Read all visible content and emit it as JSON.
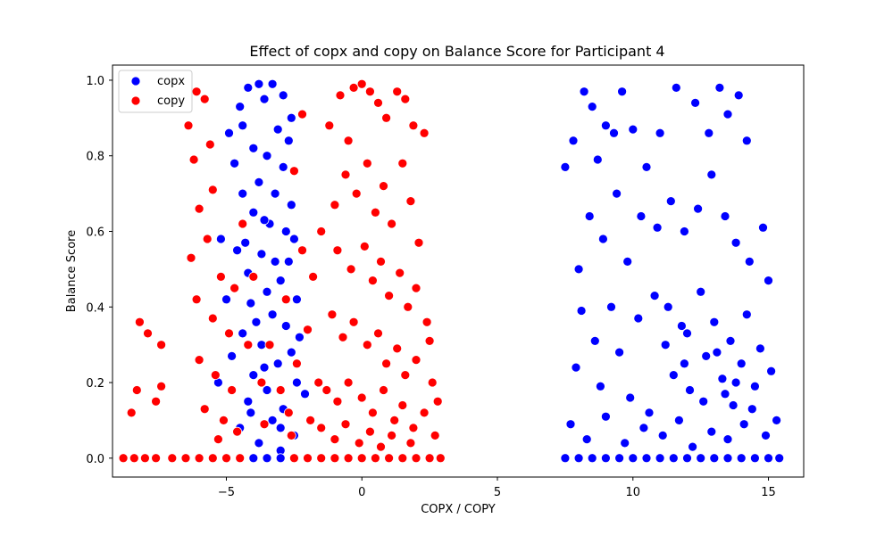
{
  "chart_data": {
    "type": "scatter",
    "title": "Effect of copx and copy on Balance Score for Participant 4",
    "xlabel": "COPX / COPY",
    "ylabel": "Balance Score",
    "xlim": [
      -9.2,
      16.3
    ],
    "ylim": [
      -0.05,
      1.04
    ],
    "xticks": [
      -5,
      0,
      5,
      10,
      15
    ],
    "xtick_labels": [
      "−5",
      "0",
      "5",
      "10",
      "15"
    ],
    "yticks": [
      0.0,
      0.2,
      0.4,
      0.6,
      0.8,
      1.0
    ],
    "ytick_labels": [
      "0.0",
      "0.2",
      "0.4",
      "0.6",
      "0.8",
      "1.0"
    ],
    "grid": false,
    "legend": {
      "position": "top-left"
    },
    "series": [
      {
        "name": "copx",
        "color": "#0000ff",
        "points": [
          [
            -4.2,
            0.98
          ],
          [
            -3.8,
            0.99
          ],
          [
            -3.3,
            0.99
          ],
          [
            -4.5,
            0.93
          ],
          [
            -3.6,
            0.95
          ],
          [
            -2.9,
            0.96
          ],
          [
            -2.6,
            0.9
          ],
          [
            -4.9,
            0.86
          ],
          [
            -4.4,
            0.88
          ],
          [
            -3.1,
            0.87
          ],
          [
            -2.7,
            0.84
          ],
          [
            -3.5,
            0.8
          ],
          [
            -4.0,
            0.82
          ],
          [
            -4.7,
            0.78
          ],
          [
            -2.9,
            0.77
          ],
          [
            -3.8,
            0.73
          ],
          [
            -4.4,
            0.7
          ],
          [
            -3.2,
            0.7
          ],
          [
            -2.6,
            0.67
          ],
          [
            -4.0,
            0.65
          ],
          [
            -3.4,
            0.62
          ],
          [
            -2.5,
            0.58
          ],
          [
            -4.6,
            0.55
          ],
          [
            -3.7,
            0.54
          ],
          [
            -2.7,
            0.52
          ],
          [
            -4.2,
            0.49
          ],
          [
            -3.0,
            0.47
          ],
          [
            -3.5,
            0.44
          ],
          [
            -2.4,
            0.42
          ],
          [
            -4.1,
            0.41
          ],
          [
            -3.3,
            0.38
          ],
          [
            -2.8,
            0.35
          ],
          [
            -4.4,
            0.33
          ],
          [
            -3.7,
            0.3
          ],
          [
            -2.6,
            0.28
          ],
          [
            -3.1,
            0.25
          ],
          [
            -4.0,
            0.22
          ],
          [
            -2.4,
            0.2
          ],
          [
            -3.5,
            0.18
          ],
          [
            -4.2,
            0.15
          ],
          [
            -2.9,
            0.13
          ],
          [
            -3.3,
            0.1
          ],
          [
            -4.5,
            0.08
          ],
          [
            -2.5,
            0.06
          ],
          [
            -3.8,
            0.04
          ],
          [
            -3.0,
            0.02
          ],
          [
            -5.2,
            0.58
          ],
          [
            -5.0,
            0.42
          ],
          [
            -4.8,
            0.27
          ],
          [
            -5.3,
            0.2
          ],
          [
            -2.3,
            0.32
          ],
          [
            -2.1,
            0.17
          ],
          [
            -3.6,
            0.63
          ],
          [
            -3.9,
            0.36
          ],
          [
            -3.2,
            0.52
          ],
          [
            -2.8,
            0.6
          ],
          [
            -4.3,
            0.57
          ],
          [
            -3.0,
            0.08
          ],
          [
            -4.1,
            0.12
          ],
          [
            -3.6,
            0.24
          ],
          [
            7.5,
            0.77
          ],
          [
            7.8,
            0.84
          ],
          [
            8.2,
            0.97
          ],
          [
            8.5,
            0.93
          ],
          [
            8.7,
            0.79
          ],
          [
            9.0,
            0.88
          ],
          [
            9.3,
            0.86
          ],
          [
            9.6,
            0.97
          ],
          [
            10.0,
            0.87
          ],
          [
            10.5,
            0.77
          ],
          [
            11.0,
            0.86
          ],
          [
            11.6,
            0.98
          ],
          [
            12.3,
            0.94
          ],
          [
            12.8,
            0.86
          ],
          [
            13.2,
            0.98
          ],
          [
            13.5,
            0.91
          ],
          [
            13.9,
            0.96
          ],
          [
            14.2,
            0.84
          ],
          [
            8.0,
            0.5
          ],
          [
            8.4,
            0.64
          ],
          [
            8.9,
            0.58
          ],
          [
            9.4,
            0.7
          ],
          [
            9.8,
            0.52
          ],
          [
            10.3,
            0.64
          ],
          [
            10.9,
            0.61
          ],
          [
            11.4,
            0.68
          ],
          [
            11.9,
            0.6
          ],
          [
            12.4,
            0.66
          ],
          [
            12.9,
            0.75
          ],
          [
            13.4,
            0.64
          ],
          [
            13.8,
            0.57
          ],
          [
            14.3,
            0.52
          ],
          [
            14.8,
            0.61
          ],
          [
            15.0,
            0.47
          ],
          [
            7.9,
            0.24
          ],
          [
            8.1,
            0.39
          ],
          [
            8.6,
            0.31
          ],
          [
            8.8,
            0.19
          ],
          [
            9.2,
            0.4
          ],
          [
            9.5,
            0.28
          ],
          [
            9.9,
            0.16
          ],
          [
            10.2,
            0.37
          ],
          [
            10.6,
            0.12
          ],
          [
            10.8,
            0.43
          ],
          [
            11.2,
            0.3
          ],
          [
            11.5,
            0.22
          ],
          [
            11.8,
            0.35
          ],
          [
            12.1,
            0.18
          ],
          [
            12.5,
            0.44
          ],
          [
            12.7,
            0.27
          ],
          [
            13.0,
            0.36
          ],
          [
            13.3,
            0.21
          ],
          [
            13.6,
            0.31
          ],
          [
            13.7,
            0.14
          ],
          [
            14.0,
            0.25
          ],
          [
            14.2,
            0.38
          ],
          [
            14.5,
            0.19
          ],
          [
            14.7,
            0.29
          ],
          [
            15.1,
            0.23
          ],
          [
            15.3,
            0.1
          ],
          [
            7.7,
            0.09
          ],
          [
            8.3,
            0.05
          ],
          [
            9.0,
            0.11
          ],
          [
            9.7,
            0.04
          ],
          [
            10.4,
            0.08
          ],
          [
            11.1,
            0.06
          ],
          [
            11.7,
            0.1
          ],
          [
            12.2,
            0.03
          ],
          [
            12.9,
            0.07
          ],
          [
            13.5,
            0.05
          ],
          [
            14.1,
            0.09
          ],
          [
            14.9,
            0.06
          ],
          [
            11.3,
            0.4
          ],
          [
            12.0,
            0.33
          ],
          [
            13.1,
            0.28
          ],
          [
            13.8,
            0.2
          ],
          [
            12.6,
            0.15
          ],
          [
            11.9,
            0.25
          ],
          [
            13.4,
            0.17
          ],
          [
            14.4,
            0.13
          ],
          [
            7.5,
            0.0
          ],
          [
            8.0,
            0.0
          ],
          [
            8.5,
            0.0
          ],
          [
            9.0,
            0.0
          ],
          [
            9.5,
            0.0
          ],
          [
            10.0,
            0.0
          ],
          [
            10.5,
            0.0
          ],
          [
            11.0,
            0.0
          ],
          [
            11.5,
            0.0
          ],
          [
            12.0,
            0.0
          ],
          [
            12.5,
            0.0
          ],
          [
            13.0,
            0.0
          ],
          [
            13.5,
            0.0
          ],
          [
            14.0,
            0.0
          ],
          [
            14.5,
            0.0
          ],
          [
            15.0,
            0.0
          ],
          [
            15.4,
            0.0
          ],
          [
            -4.0,
            0.0
          ],
          [
            -3.5,
            0.0
          ],
          [
            -3.0,
            0.0
          ]
        ]
      },
      {
        "name": "copy",
        "color": "#ff0000",
        "points": [
          [
            -8.5,
            0.12
          ],
          [
            -8.3,
            0.18
          ],
          [
            -8.2,
            0.36
          ],
          [
            -7.9,
            0.33
          ],
          [
            -7.6,
            0.15
          ],
          [
            -7.4,
            0.3
          ],
          [
            -7.4,
            0.19
          ],
          [
            -6.1,
            0.97
          ],
          [
            -6.4,
            0.88
          ],
          [
            -5.8,
            0.95
          ],
          [
            -6.2,
            0.79
          ],
          [
            -5.6,
            0.83
          ],
          [
            -6.0,
            0.66
          ],
          [
            -5.5,
            0.71
          ],
          [
            -6.3,
            0.53
          ],
          [
            -5.7,
            0.58
          ],
          [
            -5.2,
            0.48
          ],
          [
            -6.1,
            0.42
          ],
          [
            -5.5,
            0.37
          ],
          [
            -4.9,
            0.33
          ],
          [
            -6.0,
            0.26
          ],
          [
            -5.4,
            0.22
          ],
          [
            -4.8,
            0.18
          ],
          [
            -5.8,
            0.13
          ],
          [
            -5.1,
            0.1
          ],
          [
            -4.6,
            0.07
          ],
          [
            -5.3,
            0.05
          ],
          [
            -4.4,
            0.62
          ],
          [
            -4.7,
            0.45
          ],
          [
            -4.2,
            0.3
          ],
          [
            -2.2,
            0.91
          ],
          [
            -2.5,
            0.76
          ],
          [
            -2.2,
            0.55
          ],
          [
            -1.8,
            0.48
          ],
          [
            -2.0,
            0.34
          ],
          [
            -1.6,
            0.2
          ],
          [
            -1.9,
            0.1
          ],
          [
            -1.5,
            0.6
          ],
          [
            -1.2,
            0.88
          ],
          [
            -1.0,
            0.67
          ],
          [
            -0.8,
            0.96
          ],
          [
            -0.5,
            0.84
          ],
          [
            -0.3,
            0.98
          ],
          [
            0.0,
            0.99
          ],
          [
            0.3,
            0.97
          ],
          [
            0.6,
            0.94
          ],
          [
            0.9,
            0.9
          ],
          [
            1.3,
            0.97
          ],
          [
            1.6,
            0.95
          ],
          [
            1.9,
            0.88
          ],
          [
            2.3,
            0.86
          ],
          [
            -0.6,
            0.75
          ],
          [
            -0.2,
            0.7
          ],
          [
            0.2,
            0.78
          ],
          [
            0.5,
            0.65
          ],
          [
            0.8,
            0.72
          ],
          [
            1.1,
            0.62
          ],
          [
            1.5,
            0.78
          ],
          [
            1.8,
            0.68
          ],
          [
            2.1,
            0.57
          ],
          [
            -0.9,
            0.55
          ],
          [
            -0.4,
            0.5
          ],
          [
            0.1,
            0.56
          ],
          [
            0.4,
            0.47
          ],
          [
            0.7,
            0.52
          ],
          [
            1.0,
            0.43
          ],
          [
            1.4,
            0.49
          ],
          [
            1.7,
            0.4
          ],
          [
            2.0,
            0.45
          ],
          [
            2.4,
            0.36
          ],
          [
            -1.1,
            0.38
          ],
          [
            -0.7,
            0.32
          ],
          [
            -0.3,
            0.36
          ],
          [
            0.2,
            0.3
          ],
          [
            0.6,
            0.33
          ],
          [
            0.9,
            0.25
          ],
          [
            1.3,
            0.29
          ],
          [
            1.6,
            0.22
          ],
          [
            2.0,
            0.26
          ],
          [
            2.5,
            0.31
          ],
          [
            -1.3,
            0.18
          ],
          [
            -0.9,
            0.15
          ],
          [
            -0.5,
            0.2
          ],
          [
            0.0,
            0.16
          ],
          [
            0.4,
            0.12
          ],
          [
            0.8,
            0.18
          ],
          [
            1.2,
            0.1
          ],
          [
            1.5,
            0.14
          ],
          [
            1.9,
            0.08
          ],
          [
            2.3,
            0.12
          ],
          [
            2.6,
            0.2
          ],
          [
            2.8,
            0.15
          ],
          [
            -1.5,
            0.08
          ],
          [
            -1.0,
            0.05
          ],
          [
            -0.6,
            0.09
          ],
          [
            -0.1,
            0.04
          ],
          [
            0.3,
            0.07
          ],
          [
            0.7,
            0.03
          ],
          [
            1.1,
            0.06
          ],
          [
            1.8,
            0.04
          ],
          [
            2.7,
            0.06
          ],
          [
            -3.0,
            0.18
          ],
          [
            -2.7,
            0.12
          ],
          [
            -2.4,
            0.25
          ],
          [
            -3.4,
            0.3
          ],
          [
            -2.8,
            0.42
          ],
          [
            -3.7,
            0.2
          ],
          [
            -4.0,
            0.48
          ],
          [
            -3.6,
            0.09
          ],
          [
            -2.6,
            0.06
          ],
          [
            -8.8,
            0.0
          ],
          [
            -8.4,
            0.0
          ],
          [
            -8.0,
            0.0
          ],
          [
            -7.6,
            0.0
          ],
          [
            -7.0,
            0.0
          ],
          [
            -6.5,
            0.0
          ],
          [
            -6.0,
            0.0
          ],
          [
            -5.5,
            0.0
          ],
          [
            -5.0,
            0.0
          ],
          [
            -4.5,
            0.0
          ],
          [
            -2.5,
            0.0
          ],
          [
            -2.0,
            0.0
          ],
          [
            -1.5,
            0.0
          ],
          [
            -1.0,
            0.0
          ],
          [
            -0.5,
            0.0
          ],
          [
            0.0,
            0.0
          ],
          [
            0.5,
            0.0
          ],
          [
            1.0,
            0.0
          ],
          [
            1.5,
            0.0
          ],
          [
            2.0,
            0.0
          ],
          [
            2.5,
            0.0
          ],
          [
            2.9,
            0.0
          ]
        ]
      }
    ]
  }
}
